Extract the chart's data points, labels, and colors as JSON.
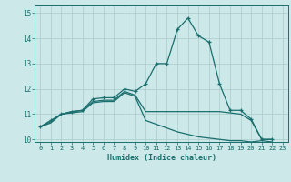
{
  "xlabel": "Humidex (Indice chaleur)",
  "xlim": [
    -0.5,
    23.5
  ],
  "ylim": [
    9.9,
    15.3
  ],
  "yticks": [
    10,
    11,
    12,
    13,
    14,
    15
  ],
  "xticks": [
    0,
    1,
    2,
    3,
    4,
    5,
    6,
    7,
    8,
    9,
    10,
    11,
    12,
    13,
    14,
    15,
    16,
    17,
    18,
    19,
    20,
    21,
    22,
    23
  ],
  "bg_color": "#cce8e8",
  "grid_color": "#aacccc",
  "line_color": "#1a6e6e",
  "line1_x": [
    0,
    1,
    2,
    3,
    4,
    5,
    6,
    7,
    8,
    9,
    10,
    11,
    12,
    13,
    14,
    15,
    16,
    17,
    18,
    19,
    20,
    21,
    22
  ],
  "line1_y": [
    10.5,
    10.75,
    11.0,
    11.1,
    11.15,
    11.6,
    11.65,
    11.65,
    12.0,
    11.9,
    12.2,
    13.0,
    13.0,
    14.35,
    14.8,
    14.1,
    13.85,
    12.2,
    11.15,
    11.15,
    10.8,
    10.0,
    10.0
  ],
  "line2_x": [
    0,
    1,
    2,
    3,
    4,
    5,
    6,
    7,
    8,
    9,
    10,
    11,
    12,
    13,
    14,
    15,
    16,
    17,
    18,
    19,
    20,
    21,
    22
  ],
  "line2_y": [
    10.5,
    10.7,
    11.0,
    11.1,
    11.15,
    11.5,
    11.55,
    11.55,
    11.9,
    11.75,
    11.1,
    11.1,
    11.1,
    11.1,
    11.1,
    11.1,
    11.1,
    11.1,
    11.05,
    11.0,
    10.75,
    10.0,
    10.0
  ],
  "line3_x": [
    0,
    1,
    2,
    3,
    4,
    5,
    6,
    7,
    8,
    9,
    10,
    11,
    12,
    13,
    14,
    15,
    16,
    17,
    18,
    19,
    20,
    21,
    22
  ],
  "line3_y": [
    10.5,
    10.65,
    11.0,
    11.05,
    11.1,
    11.45,
    11.5,
    11.5,
    11.85,
    11.7,
    10.75,
    10.6,
    10.45,
    10.3,
    10.2,
    10.1,
    10.05,
    10.0,
    9.95,
    9.95,
    9.9,
    9.95,
    9.9
  ]
}
